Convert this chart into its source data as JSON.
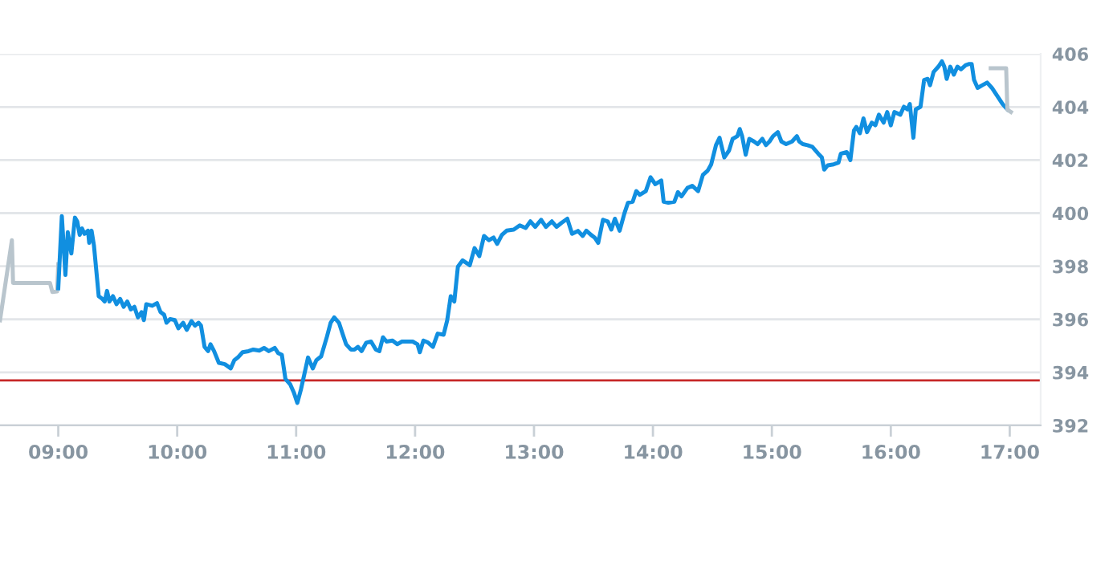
{
  "chart_data": {
    "type": "line",
    "xlim": [
      8.51,
      17.26
    ],
    "xticks": [
      {
        "value": 9,
        "label": "09:00"
      },
      {
        "value": 10,
        "label": "10:00"
      },
      {
        "value": 11,
        "label": "11:00"
      },
      {
        "value": 12,
        "label": "12:00"
      },
      {
        "value": 13,
        "label": "13:00"
      },
      {
        "value": 14,
        "label": "14:00"
      },
      {
        "value": 15,
        "label": "15:00"
      },
      {
        "value": 16,
        "label": "16:00"
      },
      {
        "value": 17,
        "label": "17:00"
      }
    ],
    "ylim": [
      392,
      406
    ],
    "yticks": [
      392,
      394,
      396,
      398,
      400,
      402,
      404,
      406
    ],
    "grid": "y",
    "marker": "none",
    "line_style": "solid",
    "ref_lines": [
      {
        "axis": "y",
        "value": 393.7,
        "label": null,
        "color": "#c62828"
      }
    ],
    "series": [
      {
        "color": "#b9c5cd",
        "x": [
          8.51,
          8.61,
          8.62,
          8.93,
          8.95,
          8.99,
          9.0
        ],
        "values": [
          395.96,
          398.98,
          397.37,
          397.37,
          397.03,
          397.05,
          398.08
        ]
      },
      {
        "color": "#118fe0",
        "x": [
          9.0,
          9.03,
          9.06,
          9.08,
          9.11,
          9.14,
          9.16,
          9.18,
          9.2,
          9.22,
          9.25,
          9.26,
          9.28,
          9.3,
          9.34,
          9.37,
          9.39,
          9.41,
          9.43,
          9.46,
          9.49,
          9.52,
          9.55,
          9.58,
          9.61,
          9.64,
          9.67,
          9.7,
          9.72,
          9.74,
          9.79,
          9.83,
          9.86,
          9.89,
          9.91,
          9.94,
          9.98,
          10.01,
          10.05,
          10.08,
          10.12,
          10.15,
          10.18,
          10.2,
          10.23,
          10.26,
          10.28,
          10.31,
          10.35,
          10.4,
          10.45,
          10.48,
          10.51,
          10.55,
          10.6,
          10.64,
          10.69,
          10.73,
          10.77,
          10.82,
          10.85,
          10.88,
          10.91,
          10.95,
          10.98,
          11.01,
          11.04,
          11.07,
          11.1,
          11.14,
          11.17,
          11.21,
          11.26,
          11.29,
          11.32,
          11.36,
          11.39,
          11.42,
          11.46,
          11.49,
          11.52,
          11.55,
          11.59,
          11.63,
          11.67,
          11.7,
          11.73,
          11.76,
          11.81,
          11.85,
          11.89,
          11.98,
          12.02,
          12.04,
          12.07,
          12.11,
          12.15,
          12.19,
          12.24,
          12.27,
          12.3,
          12.33,
          12.36,
          12.4,
          12.46,
          12.5,
          12.54,
          12.58,
          12.62,
          12.66,
          12.69,
          12.73,
          12.77,
          12.83,
          12.88,
          12.93,
          12.97,
          13.01,
          13.06,
          13.1,
          13.15,
          13.19,
          13.23,
          13.28,
          13.32,
          13.37,
          13.41,
          13.44,
          13.48,
          13.51,
          13.54,
          13.58,
          13.62,
          13.65,
          13.68,
          13.72,
          13.76,
          13.79,
          13.83,
          13.86,
          13.89,
          13.94,
          13.98,
          14.02,
          14.07,
          14.09,
          14.13,
          14.18,
          14.21,
          14.24,
          14.29,
          14.33,
          14.38,
          14.42,
          14.46,
          14.49,
          14.53,
          14.56,
          14.6,
          14.64,
          14.67,
          14.71,
          14.73,
          14.75,
          14.78,
          14.81,
          14.85,
          14.88,
          14.92,
          14.95,
          14.98,
          15.01,
          15.05,
          15.08,
          15.12,
          15.17,
          15.21,
          15.23,
          15.26,
          15.3,
          15.34,
          15.39,
          15.42,
          15.44,
          15.47,
          15.52,
          15.56,
          15.58,
          15.63,
          15.66,
          15.69,
          15.71,
          15.74,
          15.77,
          15.8,
          15.84,
          15.87,
          15.9,
          15.94,
          15.97,
          16.0,
          16.03,
          16.08,
          16.11,
          16.14,
          16.16,
          16.19,
          16.21,
          16.25,
          16.28,
          16.31,
          16.33,
          16.36,
          16.4,
          16.43,
          16.45,
          16.47,
          16.5,
          16.53,
          16.56,
          16.59,
          16.63,
          16.66,
          16.68,
          16.7,
          16.73,
          16.77,
          16.81,
          16.85,
          16.89,
          16.94,
          16.98
        ],
        "values": [
          397.17,
          399.89,
          397.67,
          399.28,
          398.48,
          399.83,
          399.68,
          399.18,
          399.42,
          399.22,
          399.34,
          398.88,
          399.34,
          398.78,
          396.87,
          396.77,
          396.67,
          397.07,
          396.67,
          396.87,
          396.57,
          396.77,
          396.47,
          396.67,
          396.37,
          396.47,
          396.07,
          396.27,
          395.97,
          396.57,
          396.51,
          396.61,
          396.27,
          396.17,
          395.87,
          396.01,
          395.97,
          395.66,
          395.87,
          395.6,
          395.93,
          395.76,
          395.87,
          395.76,
          394.96,
          394.8,
          395.06,
          394.8,
          394.36,
          394.31,
          394.15,
          394.46,
          394.56,
          394.76,
          394.8,
          394.86,
          394.82,
          394.92,
          394.8,
          394.92,
          394.72,
          394.66,
          393.75,
          393.55,
          393.25,
          392.85,
          393.35,
          393.95,
          394.56,
          394.15,
          394.46,
          394.6,
          395.36,
          395.87,
          396.07,
          395.87,
          395.46,
          395.06,
          394.86,
          394.86,
          394.96,
          394.8,
          395.12,
          395.16,
          394.86,
          394.8,
          395.32,
          395.16,
          395.2,
          395.06,
          395.16,
          395.16,
          395.06,
          394.76,
          395.2,
          395.12,
          394.96,
          395.46,
          395.42,
          395.96,
          396.87,
          396.67,
          397.98,
          398.22,
          398.04,
          398.68,
          398.38,
          399.14,
          398.98,
          399.08,
          398.84,
          399.18,
          399.34,
          399.38,
          399.54,
          399.44,
          399.69,
          399.48,
          399.75,
          399.48,
          399.69,
          399.48,
          399.63,
          399.79,
          399.22,
          399.33,
          399.14,
          399.34,
          399.18,
          399.08,
          398.88,
          399.75,
          399.69,
          399.38,
          399.79,
          399.34,
          399.99,
          400.39,
          400.43,
          400.83,
          400.69,
          400.83,
          401.35,
          401.09,
          401.23,
          400.43,
          400.39,
          400.43,
          400.79,
          400.63,
          400.95,
          401.03,
          400.83,
          401.44,
          401.6,
          401.84,
          402.56,
          402.84,
          402.1,
          402.36,
          402.8,
          402.9,
          403.17,
          402.9,
          402.2,
          402.8,
          402.7,
          402.6,
          402.8,
          402.56,
          402.7,
          402.9,
          403.05,
          402.7,
          402.6,
          402.7,
          402.9,
          402.7,
          402.6,
          402.56,
          402.5,
          402.24,
          402.1,
          401.64,
          401.8,
          401.84,
          401.9,
          402.24,
          402.3,
          402.0,
          403.11,
          403.25,
          403.01,
          403.57,
          403.05,
          403.41,
          403.31,
          403.71,
          403.41,
          403.81,
          403.31,
          403.81,
          403.71,
          404.01,
          403.91,
          404.11,
          402.84,
          403.91,
          404.01,
          405.02,
          405.06,
          404.82,
          405.32,
          405.52,
          405.72,
          405.52,
          405.06,
          405.52,
          405.22,
          405.52,
          405.42,
          405.58,
          405.62,
          405.62,
          405.02,
          404.72,
          404.82,
          404.92,
          404.72,
          404.45,
          404.11,
          403.91
        ]
      },
      {
        "color": "#b9c5cd",
        "x": [
          16.84,
          16.97,
          16.98,
          17.01
        ],
        "values": [
          405.46,
          405.46,
          403.9,
          403.81
        ]
      }
    ]
  }
}
